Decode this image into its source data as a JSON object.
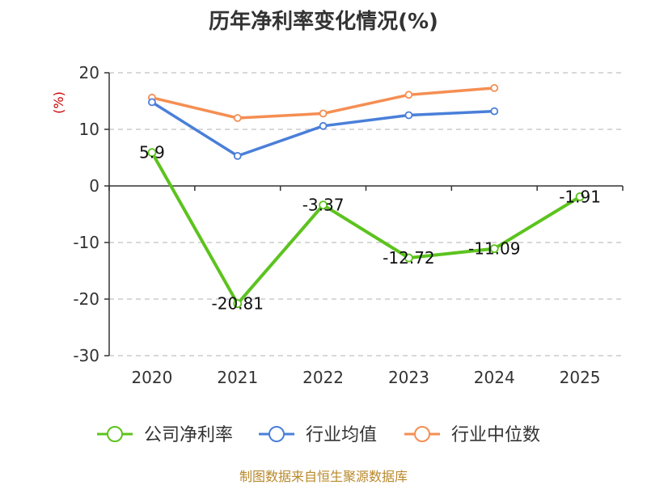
{
  "chart_data": {
    "type": "line",
    "title": "历年净利率变化情况(%)",
    "ylabel": "(%)",
    "categories": [
      "2020",
      "2021",
      "2022",
      "2023",
      "2024",
      "2025"
    ],
    "ylim": [
      -30,
      20
    ],
    "yticks": [
      20,
      10,
      0,
      -10,
      -20,
      -30
    ],
    "grid": true,
    "legend_position": "bottom",
    "series": [
      {
        "name": "公司净利率",
        "color": "#5cc31e",
        "values": [
          5.9,
          -20.81,
          -3.37,
          -12.72,
          -11.09,
          -1.91
        ],
        "labels": [
          "5.9",
          "-20.81",
          "-3.37",
          "-12.72",
          "-11.09",
          "-1.91"
        ]
      },
      {
        "name": "行业均值",
        "color": "#4a7fd9",
        "values": [
          14.8,
          5.3,
          10.6,
          12.5,
          13.2,
          null
        ]
      },
      {
        "name": "行业中位数",
        "color": "#f58e52",
        "values": [
          15.6,
          12.0,
          12.8,
          16.1,
          17.3,
          null
        ]
      }
    ]
  },
  "footer": "制图数据来自恒生聚源数据库"
}
